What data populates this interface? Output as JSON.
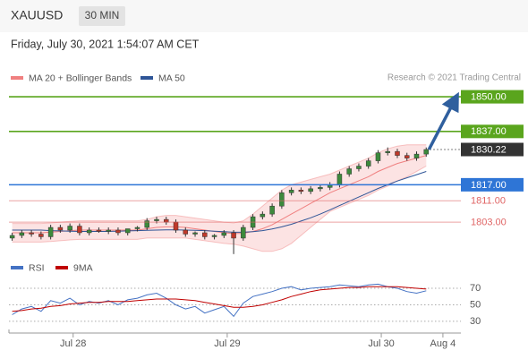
{
  "header": {
    "symbol": "XAUUSD",
    "interval": "30 MIN",
    "timestamp": "Friday, July 30, 2021 1:54:07 AM CET"
  },
  "chart_data": [
    {
      "type": "candlestick",
      "source": "Research © 2021 Trading Central",
      "x": [
        -9.5,
        -8,
        -6.5,
        -5,
        -3.5,
        -2,
        -0.5,
        1,
        2.5,
        4,
        5.5,
        7,
        8.5,
        10,
        11.5,
        13,
        14.5,
        16,
        17.5,
        19,
        20.5,
        22,
        23.5,
        25,
        26.5,
        28,
        29.5,
        31,
        32.5,
        34,
        35.5,
        37,
        38.5,
        40,
        41.5,
        43,
        44.5,
        46,
        47.5,
        49,
        50.5,
        52,
        53.5,
        55
      ],
      "open": [
        1797,
        1798,
        1799,
        1798.5,
        1797.5,
        1801,
        1800,
        1801.5,
        1799,
        1800,
        1799.5,
        1800,
        1799,
        1800.5,
        1801,
        1803.5,
        1804,
        1803,
        1800,
        1798.5,
        1799,
        1797.5,
        1798,
        1799,
        1797,
        1801,
        1805,
        1806,
        1809,
        1814,
        1815,
        1814.5,
        1815.5,
        1816,
        1817,
        1821,
        1823,
        1824,
        1826,
        1829,
        1829.5,
        1828,
        1827,
        1828.5
      ],
      "high": [
        1799,
        1800,
        1800,
        1799.5,
        1802,
        1802,
        1802.5,
        1802.5,
        1801,
        1801,
        1801,
        1801,
        1800,
        1801.5,
        1804.5,
        1805,
        1805,
        1804,
        1801,
        1799.5,
        1800,
        1798.5,
        1800,
        1800,
        1802,
        1806,
        1807,
        1810,
        1815,
        1816,
        1816,
        1816.5,
        1817,
        1818,
        1822,
        1824,
        1825,
        1827,
        1830,
        1831,
        1830.5,
        1829,
        1829.5,
        1831
      ],
      "low": [
        1796,
        1797,
        1797.5,
        1796.5,
        1796.5,
        1799,
        1799,
        1798,
        1798,
        1799,
        1798.5,
        1798,
        1798,
        1799.5,
        1800,
        1802.5,
        1802,
        1799,
        1797.5,
        1797.5,
        1796.5,
        1796.5,
        1797,
        1791,
        1796,
        1800,
        1804,
        1805,
        1808,
        1813,
        1813.5,
        1813.5,
        1814.5,
        1815,
        1816,
        1820,
        1822,
        1823,
        1825,
        1828,
        1827,
        1826,
        1826,
        1827.5
      ],
      "close": [
        1798,
        1799,
        1798.5,
        1797.5,
        1801,
        1800,
        1801.5,
        1799,
        1800,
        1799.5,
        1800,
        1799,
        1800.5,
        1801,
        1803.5,
        1804,
        1803,
        1800,
        1798.5,
        1799,
        1797.5,
        1798,
        1799,
        1797,
        1801,
        1805,
        1806,
        1809,
        1814,
        1815,
        1814.5,
        1815.5,
        1816,
        1817,
        1821,
        1823,
        1824,
        1826,
        1829,
        1829.5,
        1828,
        1827,
        1828.5,
        1830.22
      ],
      "up_color": "#3c8a3c",
      "down_color": "#c0392b",
      "series": [
        {
          "name": "MA 20 + Bollinger Bands",
          "color": "#f08080",
          "values": [
            1799,
            1799,
            1799,
            1799,
            1799.2,
            1799.5,
            1799.8,
            1800,
            1800,
            1800,
            1800,
            1800,
            1800,
            1800,
            1800.5,
            1801,
            1801.2,
            1801.2,
            1801,
            1800.5,
            1800,
            1799.5,
            1799,
            1798.7,
            1798.8,
            1799.5,
            1800.5,
            1802,
            1804,
            1806,
            1808,
            1810,
            1812,
            1814,
            1815.5,
            1817,
            1818.5,
            1820,
            1822,
            1823.5,
            1825,
            1826,
            1827,
            1828
          ],
          "upper": [
            1802.5,
            1802.5,
            1802.5,
            1802.5,
            1802.7,
            1803,
            1803.3,
            1803.5,
            1803.5,
            1803.5,
            1803.5,
            1803.5,
            1803.5,
            1803.5,
            1804,
            1805,
            1805.5,
            1805.5,
            1805,
            1804.5,
            1804,
            1803.5,
            1803,
            1802.7,
            1803.5,
            1806,
            1809,
            1812,
            1815,
            1817,
            1818,
            1819,
            1820,
            1821,
            1822.5,
            1824,
            1825.5,
            1827,
            1829,
            1830.5,
            1831.5,
            1832,
            1832,
            1832
          ],
          "lower": [
            1795.5,
            1795.5,
            1795.5,
            1795.5,
            1795.7,
            1796,
            1796.3,
            1796.5,
            1796.5,
            1796.5,
            1796.5,
            1796.5,
            1796.5,
            1796.5,
            1797,
            1797,
            1797,
            1797,
            1797,
            1796.5,
            1796,
            1795.5,
            1795,
            1794.7,
            1794,
            1793,
            1792,
            1792,
            1793,
            1795,
            1798,
            1801,
            1804,
            1807,
            1808.5,
            1810,
            1811.5,
            1813,
            1815,
            1816.5,
            1818.5,
            1820,
            1822,
            1824
          ]
        },
        {
          "name": "MA 50",
          "color": "#2f5597",
          "values": [
            1800,
            1800,
            1800,
            1800,
            1799.8,
            1799.7,
            1799.6,
            1799.5,
            1799.5,
            1799.5,
            1799.5,
            1799.6,
            1799.7,
            1799.8,
            1799.9,
            1800,
            1800.1,
            1800.1,
            1800,
            1799.9,
            1799.8,
            1799.6,
            1799.4,
            1799.2,
            1799.2,
            1799.4,
            1799.8,
            1800.4,
            1801.2,
            1802.2,
            1803.4,
            1804.6,
            1806,
            1807.6,
            1809.2,
            1810.8,
            1812.4,
            1814,
            1815.6,
            1817,
            1818.4,
            1819.6,
            1820.8,
            1822
          ]
        }
      ],
      "levels": [
        {
          "value": 1850,
          "label": "1850.00",
          "color": "#5aa51d",
          "style": "box"
        },
        {
          "value": 1837,
          "label": "1837.00",
          "color": "#5aa51d",
          "style": "box"
        },
        {
          "value": 1830.22,
          "label": "1830.22",
          "color": "#333333",
          "style": "current"
        },
        {
          "value": 1817,
          "label": "1817.00",
          "color": "#2e75d6",
          "style": "box"
        },
        {
          "value": 1811,
          "label": "1811.00",
          "color": "#e06666",
          "style": "text"
        },
        {
          "value": 1803,
          "label": "1803.00",
          "color": "#e06666",
          "style": "text"
        }
      ],
      "xlim": [
        -10,
        60.4
      ],
      "xticks": [
        {
          "value": 0,
          "label": "Jul 28"
        },
        {
          "value": 24,
          "label": "Jul 29"
        },
        {
          "value": 48,
          "label": "Jul 30"
        },
        {
          "value": 57.6,
          "label": "Aug 4"
        }
      ],
      "ylim": [
        1790.6,
        1854.4
      ]
    },
    {
      "type": "line",
      "series": [
        {
          "name": "RSI",
          "color": "#4472c4",
          "values": [
            38,
            45,
            48,
            42,
            55,
            52,
            58,
            50,
            54,
            52,
            55,
            50,
            56,
            58,
            62,
            64,
            58,
            50,
            45,
            48,
            40,
            44,
            48,
            36,
            52,
            60,
            63,
            66,
            70,
            72,
            68,
            70,
            71,
            72,
            74,
            73,
            72,
            74,
            75,
            72,
            70,
            66,
            64,
            67
          ]
        },
        {
          "name": "9MA",
          "color": "#c00000",
          "values": [
            42,
            43,
            45,
            46,
            48,
            49,
            51,
            52,
            53,
            53,
            54,
            54,
            54,
            55,
            56,
            57,
            57,
            57,
            56,
            55,
            53,
            51,
            49,
            47,
            47,
            48,
            50,
            53,
            56,
            60,
            63,
            66,
            68,
            69,
            70,
            71,
            71,
            72,
            72,
            72,
            72,
            71,
            70,
            69
          ]
        }
      ],
      "ylim": [
        18,
        83
      ],
      "yticks": [
        30,
        50,
        70
      ],
      "grid": true
    }
  ]
}
